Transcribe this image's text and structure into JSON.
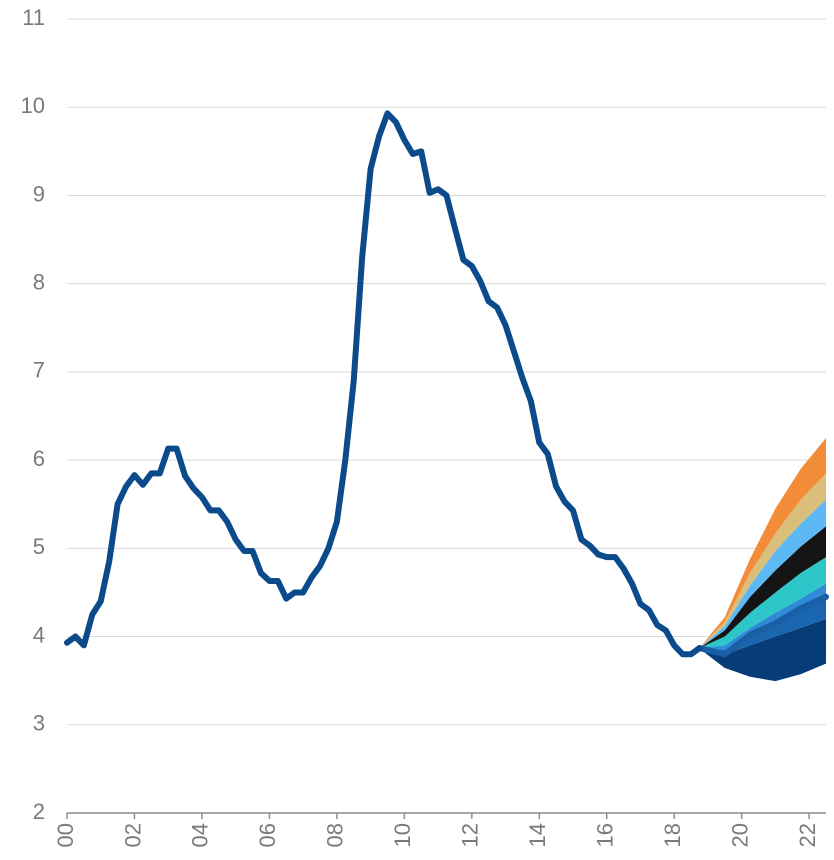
{
  "chart_data": {
    "type": "line",
    "xlim": [
      2000,
      2022.5
    ],
    "ylim": [
      2,
      11
    ],
    "yticks": [
      2,
      3,
      4,
      5,
      6,
      7,
      8,
      9,
      10,
      11
    ],
    "xticks": [
      {
        "value": 2000,
        "label": "00"
      },
      {
        "value": 2002,
        "label": "02"
      },
      {
        "value": 2004,
        "label": "04"
      },
      {
        "value": 2006,
        "label": "06"
      },
      {
        "value": 2008,
        "label": "08"
      },
      {
        "value": 2010,
        "label": "10"
      },
      {
        "value": 2012,
        "label": "12"
      },
      {
        "value": 2014,
        "label": "14"
      },
      {
        "value": 2016,
        "label": "16"
      },
      {
        "value": 2018,
        "label": "18"
      },
      {
        "value": 2020,
        "label": "20"
      },
      {
        "value": 2022,
        "label": "22"
      }
    ],
    "grid": true,
    "x": [
      2000,
      2000.25,
      2000.5,
      2000.75,
      2001,
      2001.25,
      2001.5,
      2001.75,
      2002,
      2002.25,
      2002.5,
      2002.75,
      2003,
      2003.25,
      2003.5,
      2003.75,
      2004,
      2004.25,
      2004.5,
      2004.75,
      2005,
      2005.25,
      2005.5,
      2005.75,
      2006,
      2006.25,
      2006.5,
      2006.75,
      2007,
      2007.25,
      2007.5,
      2007.75,
      2008,
      2008.25,
      2008.5,
      2008.75,
      2009,
      2009.25,
      2009.5,
      2009.75,
      2010,
      2010.25,
      2010.5,
      2010.75,
      2011,
      2011.25,
      2011.5,
      2011.75,
      2012,
      2012.25,
      2012.5,
      2012.75,
      2013,
      2013.25,
      2013.5,
      2013.75,
      2014,
      2014.25,
      2014.5,
      2014.75,
      2015,
      2015.25,
      2015.5,
      2015.75,
      2016,
      2016.25,
      2016.5,
      2016.75,
      2017,
      2017.25,
      2017.5,
      2017.75,
      2018,
      2018.25,
      2018.5,
      2018.75
    ],
    "series": [
      {
        "color": "#0b4a8b",
        "values": [
          3.93,
          4.0,
          3.9,
          4.25,
          4.4,
          4.85,
          5.5,
          5.7,
          5.83,
          5.72,
          5.85,
          5.85,
          6.13,
          6.13,
          5.82,
          5.68,
          5.58,
          5.43,
          5.43,
          5.3,
          5.1,
          4.97,
          4.97,
          4.72,
          4.63,
          4.63,
          4.43,
          4.5,
          4.5,
          4.67,
          4.8,
          5.0,
          5.3,
          6.0,
          6.9,
          8.3,
          9.3,
          9.67,
          9.93,
          9.83,
          9.63,
          9.47,
          9.5,
          9.03,
          9.07,
          9.0,
          8.63,
          8.27,
          8.2,
          8.03,
          7.8,
          7.73,
          7.53,
          7.23,
          6.93,
          6.67,
          6.2,
          6.07,
          5.7,
          5.53,
          5.43,
          5.1,
          5.03,
          4.93,
          4.9,
          4.9,
          4.77,
          4.6,
          4.37,
          4.3,
          4.13,
          4.07,
          3.9,
          3.8,
          3.8,
          3.87
        ]
      }
    ],
    "fan": {
      "x": [
        2018.75,
        2019.5,
        2020.25,
        2021,
        2021.75,
        2022.5
      ],
      "lower": {
        "color": "#063d78",
        "values": [
          3.87,
          3.65,
          3.55,
          3.5,
          3.58,
          3.7
        ]
      },
      "bands": [
        {
          "color": "#063d78",
          "values": [
            3.87,
            3.8,
            3.9,
            4.0,
            4.1,
            4.2
          ]
        },
        {
          "color": "#1a67b0",
          "values": [
            3.87,
            3.85,
            4.02,
            4.17,
            4.33,
            4.5
          ]
        },
        {
          "color": "#2f8bd8",
          "values": [
            3.87,
            3.9,
            4.1,
            4.27,
            4.43,
            4.6
          ]
        },
        {
          "color": "#2ec7c9",
          "values": [
            3.87,
            4.0,
            4.27,
            4.5,
            4.72,
            4.9
          ]
        },
        {
          "color": "#141414",
          "values": [
            3.87,
            4.07,
            4.45,
            4.75,
            5.02,
            5.25
          ]
        },
        {
          "color": "#5db9f5",
          "values": [
            3.87,
            4.12,
            4.58,
            4.97,
            5.28,
            5.55
          ]
        },
        {
          "color": "#d9bf7a",
          "values": [
            3.87,
            4.17,
            4.72,
            5.17,
            5.55,
            5.85
          ]
        },
        {
          "color": "#f28c38",
          "values": [
            3.87,
            4.22,
            4.88,
            5.45,
            5.9,
            6.25
          ]
        }
      ],
      "central": {
        "color": "#1a5ea6",
        "values": [
          3.87,
          3.8,
          4.02,
          4.15,
          4.32,
          4.45
        ]
      }
    }
  }
}
